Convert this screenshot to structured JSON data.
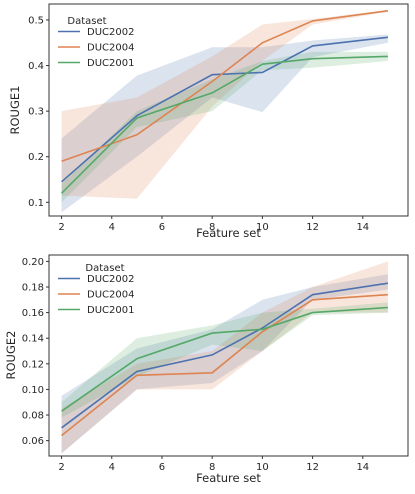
{
  "chart_data": [
    {
      "type": "line",
      "xlabel": "Feature set",
      "ylabel": "ROUGE1",
      "xlim": [
        1.5,
        15.8
      ],
      "ylim": [
        0.07,
        0.535
      ],
      "xticks": [
        2,
        4,
        6,
        8,
        10,
        12,
        14
      ],
      "yticks": [
        0.1,
        0.2,
        0.3,
        0.4,
        0.5
      ],
      "yticks_text": [
        "0.1",
        "0.2",
        "0.3",
        "0.4",
        "0.5"
      ],
      "legend": {
        "title": "Dataset",
        "position": "upper-left"
      },
      "x": [
        2,
        5,
        8,
        10,
        12,
        15
      ],
      "series": [
        {
          "name": "DUC2002",
          "color": "#4c72b0",
          "values": [
            0.145,
            0.29,
            0.38,
            0.385,
            0.443,
            0.462
          ],
          "lower": [
            0.078,
            0.2,
            0.33,
            0.298,
            0.418,
            0.45
          ],
          "upper": [
            0.24,
            0.378,
            0.44,
            0.44,
            0.455,
            0.468
          ]
        },
        {
          "name": "DUC2004",
          "color": "#dd8452",
          "values": [
            0.19,
            0.248,
            0.365,
            0.45,
            0.498,
            0.52
          ],
          "lower": [
            0.115,
            0.108,
            0.31,
            0.41,
            0.49,
            0.518
          ],
          "upper": [
            0.3,
            0.33,
            0.42,
            0.49,
            0.502,
            0.522
          ]
        },
        {
          "name": "DUC2001",
          "color": "#55a868",
          "values": [
            0.12,
            0.285,
            0.34,
            0.403,
            0.415,
            0.42
          ],
          "lower": [
            0.1,
            0.265,
            0.3,
            0.39,
            0.395,
            0.41
          ],
          "upper": [
            0.14,
            0.3,
            0.37,
            0.41,
            0.43,
            0.43
          ]
        }
      ]
    },
    {
      "type": "line",
      "xlabel": "Feature set",
      "ylabel": "ROUGE2",
      "xlim": [
        1.5,
        15.8
      ],
      "ylim": [
        0.048,
        0.205
      ],
      "xticks": [
        2,
        4,
        6,
        8,
        10,
        12,
        14
      ],
      "yticks": [
        0.06,
        0.08,
        0.1,
        0.12,
        0.14,
        0.16,
        0.18,
        0.2
      ],
      "yticks_text": [
        "0.06",
        "0.08",
        "0.10",
        "0.12",
        "0.14",
        "0.16",
        "0.18",
        "0.20"
      ],
      "legend": {
        "title": "Dataset",
        "position": "upper-left"
      },
      "x": [
        2,
        5,
        8,
        10,
        12,
        15
      ],
      "series": [
        {
          "name": "DUC2002",
          "color": "#4c72b0",
          "values": [
            0.07,
            0.114,
            0.127,
            0.148,
            0.174,
            0.183
          ],
          "lower": [
            0.05,
            0.1,
            0.105,
            0.13,
            0.17,
            0.178
          ],
          "upper": [
            0.095,
            0.132,
            0.147,
            0.17,
            0.18,
            0.19
          ]
        },
        {
          "name": "DUC2004",
          "color": "#dd8452",
          "values": [
            0.064,
            0.111,
            0.113,
            0.145,
            0.17,
            0.174
          ],
          "lower": [
            0.05,
            0.1,
            0.1,
            0.13,
            0.16,
            0.16
          ],
          "upper": [
            0.085,
            0.12,
            0.13,
            0.16,
            0.18,
            0.2
          ]
        },
        {
          "name": "DUC2001",
          "color": "#55a868",
          "values": [
            0.083,
            0.124,
            0.144,
            0.147,
            0.16,
            0.164
          ],
          "lower": [
            0.078,
            0.11,
            0.135,
            0.13,
            0.158,
            0.16
          ],
          "upper": [
            0.09,
            0.14,
            0.15,
            0.16,
            0.163,
            0.168
          ]
        }
      ]
    }
  ]
}
